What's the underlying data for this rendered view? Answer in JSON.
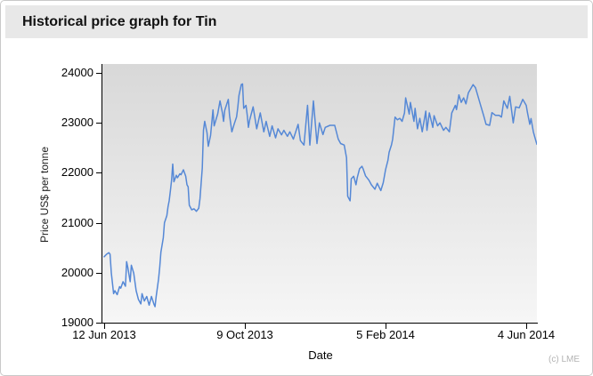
{
  "header": {
    "title": "Historical price graph for Tin"
  },
  "chart_data": {
    "type": "line",
    "title": "Historical price graph for Tin",
    "xlabel": "Date",
    "ylabel": "Price US$ per tonne",
    "attribution": "(c) LME",
    "x_unit": "days since 12 Jun 2013",
    "x_domain": [
      0,
      366
    ],
    "ylim": [
      19000,
      24000
    ],
    "y_ticks": [
      19000,
      20000,
      21000,
      22000,
      23000,
      24000
    ],
    "x_ticks": [
      {
        "day": 0,
        "label": "12 Jun 2013"
      },
      {
        "day": 119,
        "label": "9 Oct 2013"
      },
      {
        "day": 238,
        "label": "5 Feb 2014"
      },
      {
        "day": 357,
        "label": "4 Jun 2014"
      }
    ],
    "grid": false,
    "legend": "none",
    "line_color": "#5588d6",
    "plot_bg_top": "#d8d8d8",
    "plot_bg_bottom": "#f6f6f6",
    "series": [
      {
        "name": "Tin price (US$ per tonne)",
        "points": [
          [
            0,
            20320
          ],
          [
            2,
            20370
          ],
          [
            4,
            20400
          ],
          [
            5,
            20370
          ],
          [
            6,
            20000
          ],
          [
            8,
            19580
          ],
          [
            9,
            19640
          ],
          [
            11,
            19560
          ],
          [
            13,
            19720
          ],
          [
            14,
            19690
          ],
          [
            16,
            19820
          ],
          [
            18,
            19730
          ],
          [
            19,
            20220
          ],
          [
            20,
            20100
          ],
          [
            22,
            19820
          ],
          [
            23,
            20150
          ],
          [
            25,
            19990
          ],
          [
            26,
            19820
          ],
          [
            27,
            19640
          ],
          [
            29,
            19465
          ],
          [
            31,
            19375
          ],
          [
            32,
            19580
          ],
          [
            34,
            19435
          ],
          [
            36,
            19525
          ],
          [
            38,
            19350
          ],
          [
            40,
            19525
          ],
          [
            42,
            19375
          ],
          [
            43,
            19320
          ],
          [
            44,
            19525
          ],
          [
            46,
            19875
          ],
          [
            47,
            20110
          ],
          [
            48,
            20410
          ],
          [
            50,
            20700
          ],
          [
            51,
            21000
          ],
          [
            53,
            21145
          ],
          [
            54,
            21320
          ],
          [
            55,
            21440
          ],
          [
            56,
            21645
          ],
          [
            57,
            21850
          ],
          [
            58,
            22175
          ],
          [
            59,
            21820
          ],
          [
            61,
            21950
          ],
          [
            62,
            21900
          ],
          [
            64,
            21980
          ],
          [
            65,
            21960
          ],
          [
            67,
            22060
          ],
          [
            69,
            21930
          ],
          [
            70,
            21760
          ],
          [
            71,
            21720
          ],
          [
            72,
            21350
          ],
          [
            74,
            21260
          ],
          [
            76,
            21280
          ],
          [
            78,
            21230
          ],
          [
            80,
            21290
          ],
          [
            81,
            21480
          ],
          [
            83,
            22100
          ],
          [
            84,
            22850
          ],
          [
            85,
            23030
          ],
          [
            87,
            22800
          ],
          [
            88,
            22530
          ],
          [
            90,
            22750
          ],
          [
            92,
            23260
          ],
          [
            93,
            22940
          ],
          [
            96,
            23180
          ],
          [
            98,
            23440
          ],
          [
            100,
            23200
          ],
          [
            101,
            23030
          ],
          [
            102,
            23250
          ],
          [
            105,
            23470
          ],
          [
            106,
            23150
          ],
          [
            108,
            22820
          ],
          [
            110,
            22980
          ],
          [
            112,
            23120
          ],
          [
            113,
            23300
          ],
          [
            114,
            23550
          ],
          [
            116,
            23765
          ],
          [
            117,
            23780
          ],
          [
            118,
            23290
          ],
          [
            120,
            23350
          ],
          [
            121,
            23150
          ],
          [
            122,
            22910
          ],
          [
            123,
            23050
          ],
          [
            126,
            23320
          ],
          [
            129,
            22880
          ],
          [
            132,
            23200
          ],
          [
            135,
            22820
          ],
          [
            137,
            23030
          ],
          [
            140,
            22730
          ],
          [
            142,
            22940
          ],
          [
            145,
            22700
          ],
          [
            147,
            22880
          ],
          [
            150,
            22760
          ],
          [
            152,
            22850
          ],
          [
            155,
            22730
          ],
          [
            157,
            22820
          ],
          [
            160,
            22675
          ],
          [
            164,
            22970
          ],
          [
            166,
            22645
          ],
          [
            169,
            22555
          ],
          [
            172,
            23350
          ],
          [
            174,
            22555
          ],
          [
            177,
            23440
          ],
          [
            180,
            22585
          ],
          [
            182,
            23000
          ],
          [
            185,
            22765
          ],
          [
            187,
            22910
          ],
          [
            191,
            22950
          ],
          [
            195,
            22950
          ],
          [
            198,
            22675
          ],
          [
            200,
            22585
          ],
          [
            203,
            22555
          ],
          [
            205,
            22300
          ],
          [
            206,
            21530
          ],
          [
            208,
            21440
          ],
          [
            209,
            21880
          ],
          [
            211,
            21930
          ],
          [
            212,
            21850
          ],
          [
            213,
            21760
          ],
          [
            214,
            21900
          ],
          [
            216,
            22080
          ],
          [
            218,
            22130
          ],
          [
            219,
            22080
          ],
          [
            221,
            21940
          ],
          [
            224,
            21850
          ],
          [
            226,
            21760
          ],
          [
            229,
            21670
          ],
          [
            231,
            21790
          ],
          [
            234,
            21645
          ],
          [
            236,
            21800
          ],
          [
            238,
            22060
          ],
          [
            240,
            22250
          ],
          [
            241,
            22410
          ],
          [
            243,
            22560
          ],
          [
            244,
            22675
          ],
          [
            246,
            23115
          ],
          [
            248,
            23060
          ],
          [
            250,
            23090
          ],
          [
            252,
            23030
          ],
          [
            254,
            23200
          ],
          [
            255,
            23500
          ],
          [
            258,
            23175
          ],
          [
            259,
            23410
          ],
          [
            262,
            23030
          ],
          [
            263,
            23290
          ],
          [
            265,
            22880
          ],
          [
            267,
            23090
          ],
          [
            269,
            22820
          ],
          [
            272,
            23235
          ],
          [
            273,
            22850
          ],
          [
            275,
            23200
          ],
          [
            278,
            22910
          ],
          [
            279,
            23145
          ],
          [
            282,
            22940
          ],
          [
            284,
            23000
          ],
          [
            287,
            22850
          ],
          [
            289,
            22910
          ],
          [
            292,
            22820
          ],
          [
            294,
            23200
          ],
          [
            297,
            23350
          ],
          [
            298,
            23265
          ],
          [
            300,
            23560
          ],
          [
            302,
            23410
          ],
          [
            304,
            23500
          ],
          [
            306,
            23380
          ],
          [
            308,
            23600
          ],
          [
            312,
            23765
          ],
          [
            314,
            23705
          ],
          [
            318,
            23380
          ],
          [
            321,
            23145
          ],
          [
            323,
            22970
          ],
          [
            326,
            22950
          ],
          [
            328,
            23205
          ],
          [
            331,
            23150
          ],
          [
            334,
            23150
          ],
          [
            336,
            23115
          ],
          [
            338,
            23440
          ],
          [
            341,
            23290
          ],
          [
            343,
            23530
          ],
          [
            346,
            23000
          ],
          [
            348,
            23320
          ],
          [
            351,
            23300
          ],
          [
            354,
            23470
          ],
          [
            357,
            23350
          ],
          [
            358,
            23205
          ],
          [
            360,
            22970
          ],
          [
            361,
            23085
          ],
          [
            363,
            22820
          ],
          [
            364,
            22735
          ],
          [
            366,
            22570
          ]
        ]
      }
    ]
  }
}
